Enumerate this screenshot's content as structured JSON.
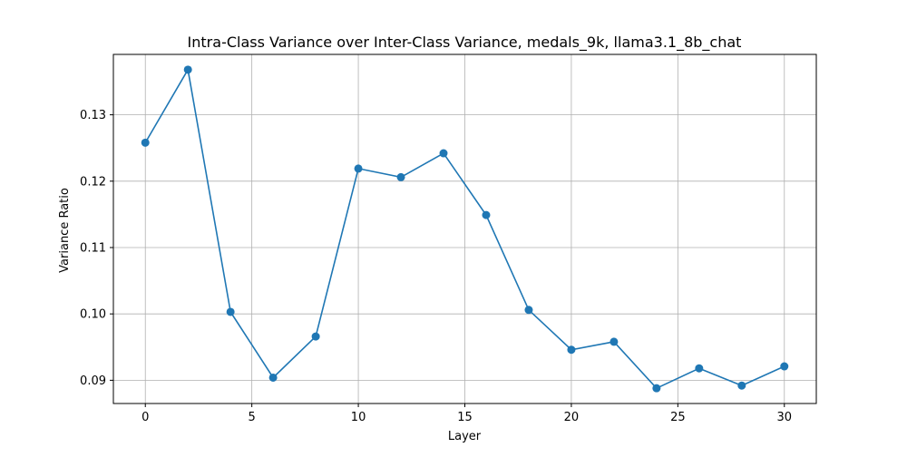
{
  "chart_data": {
    "type": "line",
    "title": "Intra-Class Variance over Inter-Class Variance, medals_9k, llama3.1_8b_chat",
    "xlabel": "Layer",
    "ylabel": "Variance Ratio",
    "xlim": [
      -1.5,
      31.5
    ],
    "ylim": [
      0.0865,
      0.1391
    ],
    "xticks": [
      0,
      5,
      10,
      15,
      20,
      25,
      30
    ],
    "yticks": [
      0.09,
      0.1,
      0.11,
      0.12,
      0.13
    ],
    "ytick_labels": [
      "0.09",
      "0.10",
      "0.11",
      "0.12",
      "0.13"
    ],
    "grid": true,
    "series": [
      {
        "color": "#1f77b4",
        "marker": "circle",
        "x": [
          0,
          2,
          4,
          6,
          8,
          10,
          12,
          14,
          16,
          18,
          20,
          22,
          24,
          26,
          28,
          30
        ],
        "y": [
          0.1258,
          0.1368,
          0.1003,
          0.0904,
          0.0966,
          0.1219,
          0.1206,
          0.1242,
          0.1149,
          0.1006,
          0.0946,
          0.0958,
          0.0888,
          0.0918,
          0.0892,
          0.0921
        ]
      }
    ]
  }
}
